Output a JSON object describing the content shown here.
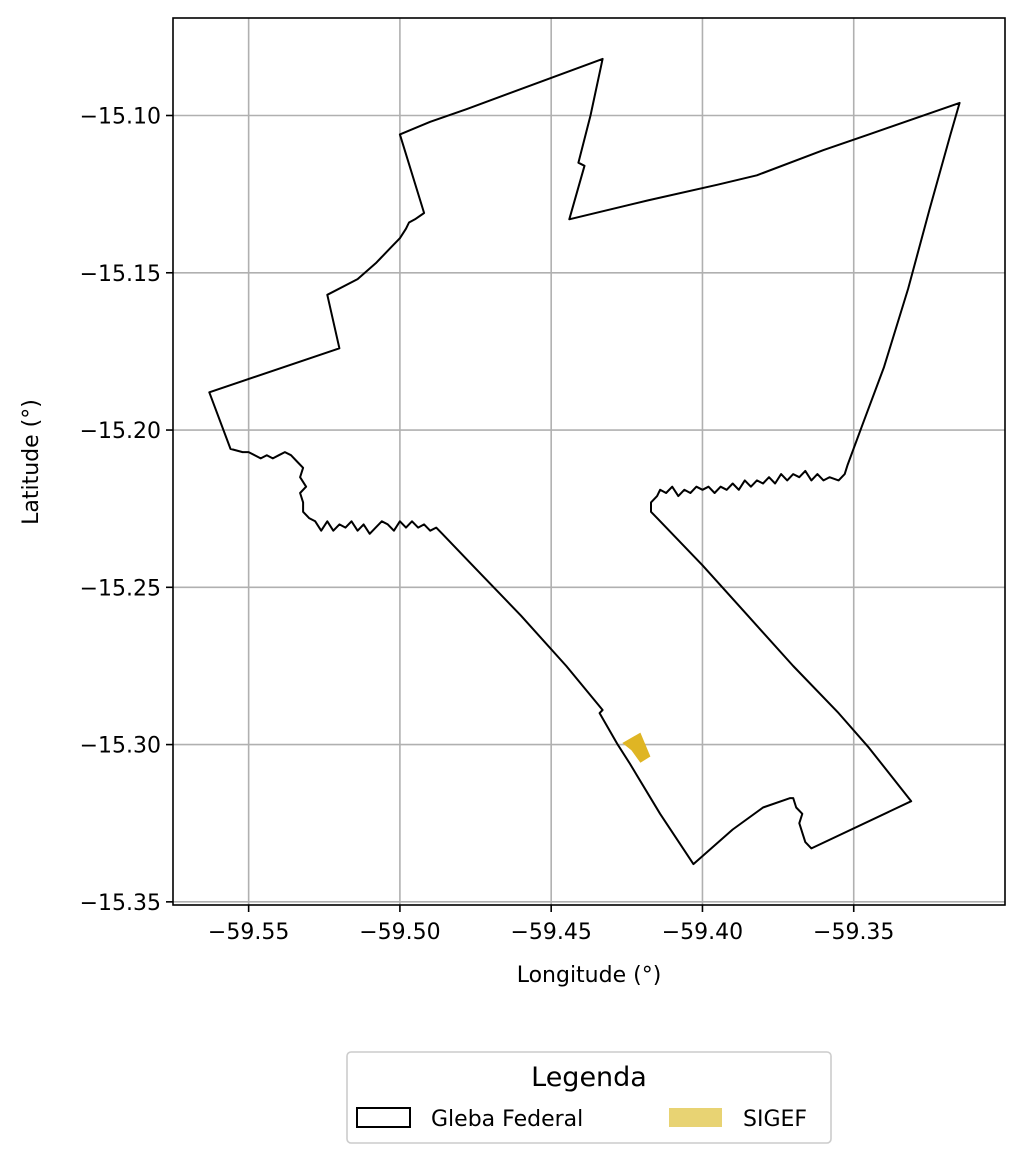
{
  "chart_data": {
    "type": "map",
    "xlabel": "Longitude (°)",
    "ylabel": "Latitude (°)",
    "xlim": [
      -59.575,
      -59.3
    ],
    "ylim": [
      -15.351,
      -15.069
    ],
    "grid": true,
    "x_ticks": [
      -59.55,
      -59.5,
      -59.45,
      -59.4,
      -59.35
    ],
    "x_tick_labels": [
      "−59.55",
      "−59.50",
      "−59.45",
      "−59.40",
      "−59.35"
    ],
    "y_ticks": [
      -15.1,
      -15.15,
      -15.2,
      -15.25,
      -15.3,
      -15.35
    ],
    "y_tick_labels": [
      "−15.10",
      "−15.15",
      "−15.20",
      "−15.25",
      "−15.30",
      "−15.35"
    ],
    "legend": {
      "title": "Legenda",
      "placement": "bottom-center below axes",
      "entries": [
        {
          "label": "Gleba Federal",
          "style": "outline",
          "color": "#000000"
        },
        {
          "label": "SIGEF",
          "style": "fill",
          "color": "#e8d373"
        }
      ]
    },
    "layers": [
      {
        "name": "Gleba Federal",
        "style": "outline",
        "stroke": "#000000",
        "fill": "none",
        "coordinates": [
          [
            -59.433,
            -15.082
          ],
          [
            -59.437,
            -15.1
          ],
          [
            -59.441,
            -15.115
          ],
          [
            -59.439,
            -15.116
          ],
          [
            -59.444,
            -15.133
          ],
          [
            -59.418,
            -15.127
          ],
          [
            -59.395,
            -15.122
          ],
          [
            -59.382,
            -15.119
          ],
          [
            -59.36,
            -15.111
          ],
          [
            -59.345,
            -15.106
          ],
          [
            -59.33,
            -15.101
          ],
          [
            -59.315,
            -15.096
          ],
          [
            -59.318,
            -15.106
          ],
          [
            -59.325,
            -15.13
          ],
          [
            -59.332,
            -15.155
          ],
          [
            -59.34,
            -15.18
          ],
          [
            -59.347,
            -15.198
          ],
          [
            -59.352,
            -15.211
          ],
          [
            -59.353,
            -15.214
          ],
          [
            -59.355,
            -15.216
          ],
          [
            -59.358,
            -15.215
          ],
          [
            -59.36,
            -15.216
          ],
          [
            -59.362,
            -15.214
          ],
          [
            -59.364,
            -15.216
          ],
          [
            -59.366,
            -15.213
          ],
          [
            -59.368,
            -15.215
          ],
          [
            -59.37,
            -15.214
          ],
          [
            -59.372,
            -15.216
          ],
          [
            -59.374,
            -15.214
          ],
          [
            -59.376,
            -15.217
          ],
          [
            -59.378,
            -15.215
          ],
          [
            -59.38,
            -15.217
          ],
          [
            -59.382,
            -15.216
          ],
          [
            -59.384,
            -15.218
          ],
          [
            -59.386,
            -15.216
          ],
          [
            -59.388,
            -15.219
          ],
          [
            -59.39,
            -15.217
          ],
          [
            -59.392,
            -15.219
          ],
          [
            -59.394,
            -15.218
          ],
          [
            -59.396,
            -15.22
          ],
          [
            -59.398,
            -15.218
          ],
          [
            -59.4,
            -15.219
          ],
          [
            -59.402,
            -15.218
          ],
          [
            -59.404,
            -15.22
          ],
          [
            -59.406,
            -15.219
          ],
          [
            -59.408,
            -15.221
          ],
          [
            -59.41,
            -15.218
          ],
          [
            -59.412,
            -15.22
          ],
          [
            -59.414,
            -15.219
          ],
          [
            -59.415,
            -15.221
          ],
          [
            -59.417,
            -15.223
          ],
          [
            -59.417,
            -15.226
          ],
          [
            -59.415,
            -15.228
          ],
          [
            -59.4,
            -15.243
          ],
          [
            -59.385,
            -15.259
          ],
          [
            -59.37,
            -15.275
          ],
          [
            -59.355,
            -15.29
          ],
          [
            -59.345,
            -15.301
          ],
          [
            -59.331,
            -15.318
          ],
          [
            -59.364,
            -15.333
          ],
          [
            -59.366,
            -15.331
          ],
          [
            -59.367,
            -15.328
          ],
          [
            -59.368,
            -15.325
          ],
          [
            -59.367,
            -15.322
          ],
          [
            -59.369,
            -15.32
          ],
          [
            -59.37,
            -15.317
          ],
          [
            -59.371,
            -15.317
          ],
          [
            -59.38,
            -15.32
          ],
          [
            -59.39,
            -15.327
          ],
          [
            -59.403,
            -15.338
          ],
          [
            -59.414,
            -15.322
          ],
          [
            -59.424,
            -15.306
          ],
          [
            -59.428,
            -15.3
          ],
          [
            -59.434,
            -15.29
          ],
          [
            -59.433,
            -15.289
          ],
          [
            -59.445,
            -15.275
          ],
          [
            -59.46,
            -15.259
          ],
          [
            -59.475,
            -15.244
          ],
          [
            -59.486,
            -15.233
          ],
          [
            -59.488,
            -15.231
          ],
          [
            -59.49,
            -15.232
          ],
          [
            -59.492,
            -15.23
          ],
          [
            -59.494,
            -15.231
          ],
          [
            -59.496,
            -15.229
          ],
          [
            -59.498,
            -15.231
          ],
          [
            -59.5,
            -15.229
          ],
          [
            -59.502,
            -15.232
          ],
          [
            -59.504,
            -15.23
          ],
          [
            -59.506,
            -15.229
          ],
          [
            -59.508,
            -15.231
          ],
          [
            -59.51,
            -15.233
          ],
          [
            -59.512,
            -15.23
          ],
          [
            -59.514,
            -15.232
          ],
          [
            -59.516,
            -15.229
          ],
          [
            -59.518,
            -15.231
          ],
          [
            -59.52,
            -15.23
          ],
          [
            -59.522,
            -15.232
          ],
          [
            -59.524,
            -15.229
          ],
          [
            -59.526,
            -15.232
          ],
          [
            -59.528,
            -15.229
          ],
          [
            -59.53,
            -15.228
          ],
          [
            -59.532,
            -15.226
          ],
          [
            -59.532,
            -15.223
          ],
          [
            -59.533,
            -15.22
          ],
          [
            -59.531,
            -15.218
          ],
          [
            -59.533,
            -15.215
          ],
          [
            -59.532,
            -15.212
          ],
          [
            -59.534,
            -15.21
          ],
          [
            -59.536,
            -15.208
          ],
          [
            -59.538,
            -15.207
          ],
          [
            -59.54,
            -15.208
          ],
          [
            -59.542,
            -15.209
          ],
          [
            -59.544,
            -15.208
          ],
          [
            -59.546,
            -15.209
          ],
          [
            -59.548,
            -15.208
          ],
          [
            -59.55,
            -15.207
          ],
          [
            -59.552,
            -15.207
          ],
          [
            -59.556,
            -15.206
          ],
          [
            -59.563,
            -15.188
          ],
          [
            -59.52,
            -15.174
          ],
          [
            -59.524,
            -15.157
          ],
          [
            -59.514,
            -15.152
          ],
          [
            -59.508,
            -15.147
          ],
          [
            -59.503,
            -15.142
          ],
          [
            -59.5,
            -15.139
          ],
          [
            -59.498,
            -15.136
          ],
          [
            -59.497,
            -15.134
          ],
          [
            -59.495,
            -15.133
          ],
          [
            -59.492,
            -15.131
          ],
          [
            -59.5,
            -15.106
          ],
          [
            -59.49,
            -15.102
          ],
          [
            -59.478,
            -15.098
          ],
          [
            -59.433,
            -15.082
          ]
        ]
      },
      {
        "name": "SIGEF",
        "style": "fill",
        "fill": "#dfb524",
        "coordinates": [
          [
            -59.4265,
            -15.2995
          ],
          [
            -59.4205,
            -15.2962
          ],
          [
            -59.4172,
            -15.3038
          ],
          [
            -59.4205,
            -15.3058
          ],
          [
            -59.4235,
            -15.3018
          ]
        ]
      }
    ]
  }
}
